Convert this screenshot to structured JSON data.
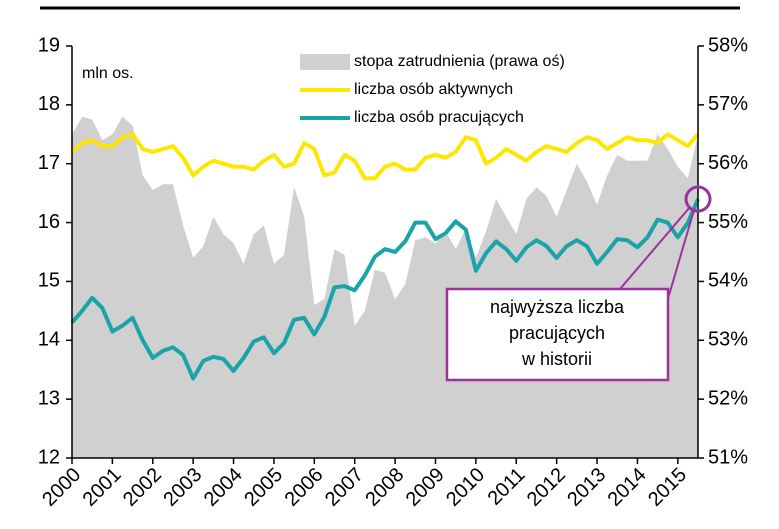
{
  "chart_data": {
    "type": "line",
    "y_label": "mln os.",
    "x": [
      2000,
      2000.25,
      2000.5,
      2000.75,
      2001,
      2001.25,
      2001.5,
      2001.75,
      2002,
      2002.25,
      2002.5,
      2002.75,
      2003,
      2003.25,
      2003.5,
      2003.75,
      2004,
      2004.25,
      2004.5,
      2004.75,
      2005,
      2005.25,
      2005.5,
      2005.75,
      2006,
      2006.25,
      2006.5,
      2006.75,
      2007,
      2007.25,
      2007.5,
      2007.75,
      2008,
      2008.25,
      2008.5,
      2008.75,
      2009,
      2009.25,
      2009.5,
      2009.75,
      2010,
      2010.25,
      2010.5,
      2010.75,
      2011,
      2011.25,
      2011.5,
      2011.75,
      2012,
      2012.25,
      2012.5,
      2012.75,
      2013,
      2013.25,
      2013.5,
      2013.75,
      2014,
      2014.25,
      2014.5,
      2014.75,
      2015,
      2015.25,
      2015.5
    ],
    "series": [
      {
        "name": "stopa zatrudnienia (prawa oś)",
        "color": "#d0d0d0",
        "axis": "y2",
        "kind": "area",
        "values": [
          56.5,
          56.8,
          56.75,
          56.4,
          56.5,
          56.8,
          56.65,
          55.8,
          55.55,
          55.65,
          55.65,
          54.95,
          54.4,
          54.6,
          55.1,
          54.8,
          54.65,
          54.3,
          54.8,
          54.95,
          54.3,
          54.45,
          55.6,
          55.1,
          53.6,
          53.7,
          54.55,
          54.45,
          53.25,
          53.5,
          54.2,
          54.15,
          53.7,
          53.95,
          54.7,
          54.75,
          54.65,
          54.85,
          54.55,
          54.9,
          54.4,
          54.85,
          55.4,
          55.1,
          54.8,
          55.4,
          55.6,
          55.45,
          55.1,
          55.55,
          56.0,
          55.7,
          55.3,
          55.8,
          56.15,
          56.05,
          56.05,
          56.05,
          56.5,
          56.25,
          55.95,
          55.75,
          56.5
        ]
      },
      {
        "name": "liczba osób aktywnych",
        "color": "#ffe600",
        "values": [
          17.2,
          17.35,
          17.4,
          17.3,
          17.3,
          17.45,
          17.5,
          17.25,
          17.2,
          17.25,
          17.3,
          17.1,
          16.8,
          16.95,
          17.05,
          17.0,
          16.95,
          16.95,
          16.9,
          17.05,
          17.15,
          16.95,
          17.0,
          17.35,
          17.25,
          16.8,
          16.85,
          17.15,
          17.05,
          16.75,
          16.75,
          16.95,
          17.0,
          16.9,
          16.9,
          17.1,
          17.15,
          17.1,
          17.2,
          17.45,
          17.4,
          17.0,
          17.1,
          17.25,
          17.15,
          17.05,
          17.2,
          17.3,
          17.25,
          17.2,
          17.35,
          17.45,
          17.4,
          17.25,
          17.35,
          17.45,
          17.4,
          17.4,
          17.35,
          17.5,
          17.4,
          17.3,
          17.5
        ]
      },
      {
        "name": "liczba osób pracujących",
        "color": "#1aa3a8",
        "values": [
          14.3,
          14.5,
          14.72,
          14.55,
          14.15,
          14.25,
          14.38,
          14.0,
          13.7,
          13.82,
          13.88,
          13.75,
          13.35,
          13.65,
          13.72,
          13.68,
          13.48,
          13.7,
          13.98,
          14.05,
          13.78,
          13.95,
          14.35,
          14.38,
          14.1,
          14.4,
          14.9,
          14.92,
          14.85,
          15.1,
          15.42,
          15.55,
          15.5,
          15.68,
          16.0,
          16.0,
          15.72,
          15.82,
          16.02,
          15.88,
          15.18,
          15.48,
          15.68,
          15.55,
          15.35,
          15.58,
          15.7,
          15.6,
          15.4,
          15.6,
          15.7,
          15.6,
          15.3,
          15.5,
          15.72,
          15.7,
          15.58,
          15.75,
          16.05,
          16.0,
          15.75,
          16.0,
          16.4
        ]
      }
    ],
    "xlim": [
      2000,
      2015.5
    ],
    "xticks": [
      2000,
      2001,
      2002,
      2003,
      2004,
      2005,
      2006,
      2007,
      2008,
      2009,
      2010,
      2011,
      2012,
      2013,
      2014,
      2015
    ],
    "ylim": [
      12,
      19
    ],
    "yticks": [
      12,
      13,
      14,
      15,
      16,
      17,
      18,
      19
    ],
    "y2lim": [
      51,
      58
    ],
    "y2ticks": [
      {
        "value": 51,
        "label": "51%"
      },
      {
        "value": 52,
        "label": "52%"
      },
      {
        "value": 53,
        "label": "53%"
      },
      {
        "value": 54,
        "label": "54%"
      },
      {
        "value": 55,
        "label": "55%"
      },
      {
        "value": 56,
        "label": "56%"
      },
      {
        "value": 57,
        "label": "57%"
      },
      {
        "value": 58,
        "label": "58%"
      }
    ],
    "legend": "top",
    "annotations": [
      {
        "lines": [
          "najwyższa liczba",
          "pracujących",
          "w historii"
        ],
        "color": "#993399"
      }
    ]
  }
}
